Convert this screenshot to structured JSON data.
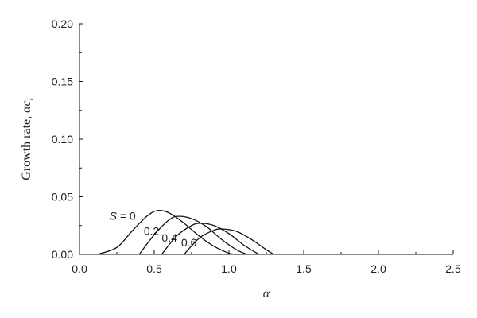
{
  "chart_data": {
    "type": "line",
    "title": "",
    "xlabel": "α",
    "ylabel": "Growth rate, αc_i",
    "ylabel_prefix": "Growth rate, ",
    "ylabel_symbol": "αc",
    "ylabel_subscript": "i",
    "xlim": [
      0.0,
      2.5
    ],
    "ylim": [
      0.0,
      0.2
    ],
    "x_ticks": [
      "0.0",
      "0.5",
      "1.0",
      "1.5",
      "2.0",
      "2.5"
    ],
    "y_ticks": [
      "0.00",
      "0.05",
      "0.10",
      "0.15",
      "0.20"
    ],
    "grid": false,
    "legend": "none",
    "series": [
      {
        "label": "S = 0",
        "x": [
          0.12,
          0.25,
          0.35,
          0.45,
          0.52,
          0.6,
          0.7,
          0.8,
          0.9,
          1.0,
          1.05
        ],
        "y": [
          0.0,
          0.006,
          0.02,
          0.033,
          0.038,
          0.036,
          0.027,
          0.016,
          0.007,
          0.001,
          0.0
        ]
      },
      {
        "label": "0.2",
        "x": [
          0.4,
          0.5,
          0.6,
          0.66,
          0.75,
          0.85,
          0.95,
          1.05,
          1.12
        ],
        "y": [
          0.0,
          0.017,
          0.03,
          0.033,
          0.031,
          0.024,
          0.013,
          0.004,
          0.0
        ]
      },
      {
        "label": "0.4",
        "x": [
          0.55,
          0.65,
          0.75,
          0.81,
          0.9,
          1.0,
          1.1,
          1.2
        ],
        "y": [
          0.0,
          0.016,
          0.025,
          0.027,
          0.025,
          0.018,
          0.008,
          0.0
        ]
      },
      {
        "label": "0.6",
        "x": [
          0.7,
          0.8,
          0.9,
          0.96,
          1.05,
          1.15,
          1.25,
          1.3
        ],
        "y": [
          0.0,
          0.014,
          0.021,
          0.022,
          0.02,
          0.013,
          0.004,
          0.0
        ]
      }
    ]
  }
}
